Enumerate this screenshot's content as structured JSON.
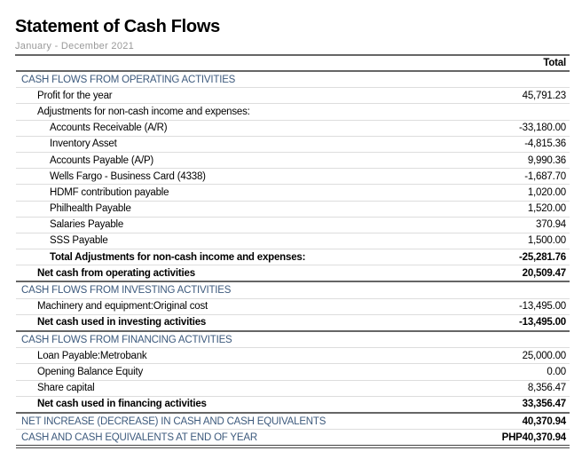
{
  "title": "Statement of Cash Flows",
  "period": "January - December 2021",
  "column_header": "Total",
  "rows": [
    {
      "label": "CASH FLOWS FROM OPERATING ACTIVITIES",
      "value": "",
      "type": "sec"
    },
    {
      "label": "Profit for the year",
      "value": "45,791.23",
      "type": "l1"
    },
    {
      "label": "Adjustments for non-cash income and expenses:",
      "value": "",
      "type": "l1"
    },
    {
      "label": "Accounts Receivable (A/R)",
      "value": "-33,180.00",
      "type": "l2"
    },
    {
      "label": "Inventory Asset",
      "value": "-4,815.36",
      "type": "l2"
    },
    {
      "label": "Accounts Payable (A/P)",
      "value": "9,990.36",
      "type": "l2"
    },
    {
      "label": "Wells Fargo - Business Card (4338)",
      "value": "-1,687.70",
      "type": "l2"
    },
    {
      "label": "HDMF contribution payable",
      "value": "1,020.00",
      "type": "l2"
    },
    {
      "label": "Philhealth Payable",
      "value": "1,520.00",
      "type": "l2"
    },
    {
      "label": "Salaries Payable",
      "value": "370.94",
      "type": "l2"
    },
    {
      "label": "SSS Payable",
      "value": "1,500.00",
      "type": "l2"
    },
    {
      "label": "Total Adjustments for non-cash income and expenses:",
      "value": "-25,281.76",
      "type": "l2 bold"
    },
    {
      "label": "Net cash from operating activities",
      "value": "20,509.47",
      "type": "l1 bold"
    },
    {
      "label": "CASH FLOWS FROM INVESTING ACTIVITIES",
      "value": "",
      "type": "sec topdark"
    },
    {
      "label": "Machinery and equipment:Original cost",
      "value": "-13,495.00",
      "type": "l1"
    },
    {
      "label": "Net cash used in investing activities",
      "value": "-13,495.00",
      "type": "l1 bold"
    },
    {
      "label": "CASH FLOWS FROM FINANCING ACTIVITIES",
      "value": "",
      "type": "sec topdark"
    },
    {
      "label": "Loan Payable:Metrobank",
      "value": "25,000.00",
      "type": "l1"
    },
    {
      "label": "Opening Balance Equity",
      "value": "0.00",
      "type": "l1"
    },
    {
      "label": "Share capital",
      "value": "8,356.47",
      "type": "l1"
    },
    {
      "label": "Net cash used in financing activities",
      "value": "33,356.47",
      "type": "l1 bold"
    },
    {
      "label": "NET INCREASE (DECREASE) IN CASH AND CASH EQUIVALENTS",
      "value": "40,370.94",
      "type": "sec boldv topdark"
    },
    {
      "label": "CASH AND CASH EQUIVALENTS AT END OF YEAR",
      "value": "PHP40,370.94",
      "type": "sec boldv final"
    }
  ]
}
